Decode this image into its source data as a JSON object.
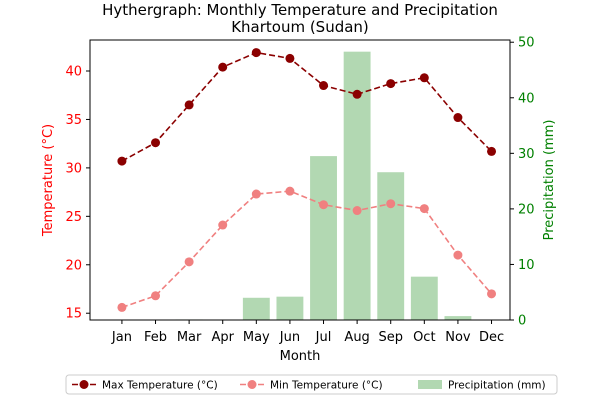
{
  "chart_data": {
    "type": "bar+line",
    "title": "Hythergraph: Monthly Temperature and Precipitation",
    "subtitle": "Khartoum (Sudan)",
    "xlabel": "Month",
    "y_left_label": "Temperature (°C)",
    "y_right_label": "Precipitation (mm)",
    "categories": [
      "Jan",
      "Feb",
      "Mar",
      "Apr",
      "May",
      "Jun",
      "Jul",
      "Aug",
      "Sep",
      "Oct",
      "Nov",
      "Dec"
    ],
    "y_left_ticks": [
      15,
      20,
      25,
      30,
      35,
      40
    ],
    "y_left_range": [
      14.3,
      43.2
    ],
    "y_right_ticks": [
      0,
      10,
      20,
      30,
      40,
      50
    ],
    "y_right_range": [
      0,
      50.4
    ],
    "grid": false,
    "legend_position": "bottom-center",
    "series": [
      {
        "name": "Max Temperature (°C)",
        "kind": "line",
        "axis": "left",
        "style": "dashed-circle-markers",
        "color": "#8b0000",
        "values": [
          30.7,
          32.6,
          36.5,
          40.4,
          41.9,
          41.3,
          38.5,
          37.6,
          38.7,
          39.3,
          35.2,
          31.7
        ]
      },
      {
        "name": "Min Temperature (°C)",
        "kind": "line",
        "axis": "left",
        "style": "dashed-circle-markers",
        "color": "#f08080",
        "values": [
          15.6,
          16.8,
          20.3,
          24.1,
          27.3,
          27.6,
          26.2,
          25.6,
          26.3,
          25.8,
          21.0,
          17.0
        ]
      },
      {
        "name": "Precipitation (mm)",
        "kind": "bar",
        "axis": "right",
        "color": "#b2d8b2",
        "values": [
          0.0,
          0.0,
          0.1,
          0.0,
          4.0,
          4.2,
          29.5,
          48.3,
          26.6,
          7.8,
          0.7,
          0.0
        ]
      }
    ],
    "axis_colors": {
      "left": "#ff0000",
      "right": "#008000"
    }
  }
}
